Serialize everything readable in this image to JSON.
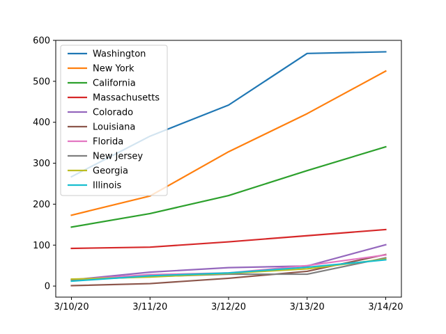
{
  "chart_data": {
    "type": "line",
    "title": "",
    "xlabel": "",
    "ylabel": "",
    "categories": [
      "3/10/20",
      "3/11/20",
      "3/12/20",
      "3/13/20",
      "3/14/20"
    ],
    "ylim": [
      -27,
      600
    ],
    "yticks": [
      0,
      100,
      200,
      300,
      400,
      500,
      600
    ],
    "grid": false,
    "legend_position": "top-left",
    "series": [
      {
        "name": "Washington",
        "color": "#1f77b4",
        "values": [
          267,
          366,
          442,
          568,
          572
        ]
      },
      {
        "name": "New York",
        "color": "#ff7f0e",
        "values": [
          173,
          220,
          328,
          421,
          525
        ]
      },
      {
        "name": "California",
        "color": "#2ca02c",
        "values": [
          144,
          177,
          221,
          282,
          340
        ]
      },
      {
        "name": "Massachusetts",
        "color": "#d62728",
        "values": [
          92,
          95,
          108,
          123,
          138
        ]
      },
      {
        "name": "Colorado",
        "color": "#9467bd",
        "values": [
          15,
          34,
          45,
          49,
          101
        ]
      },
      {
        "name": "Louisiana",
        "color": "#8c564b",
        "values": [
          1,
          6,
          19,
          36,
          77
        ]
      },
      {
        "name": "Florida",
        "color": "#e377c2",
        "values": [
          15,
          28,
          32,
          50,
          76
        ]
      },
      {
        "name": "New Jersey",
        "color": "#7f7f7f",
        "values": [
          15,
          23,
          29,
          29,
          69
        ]
      },
      {
        "name": "Georgia",
        "color": "#bcbd22",
        "values": [
          17,
          22,
          31,
          42,
          66
        ]
      },
      {
        "name": "Illinois",
        "color": "#17becf",
        "values": [
          12,
          25,
          32,
          46,
          64
        ]
      }
    ]
  }
}
